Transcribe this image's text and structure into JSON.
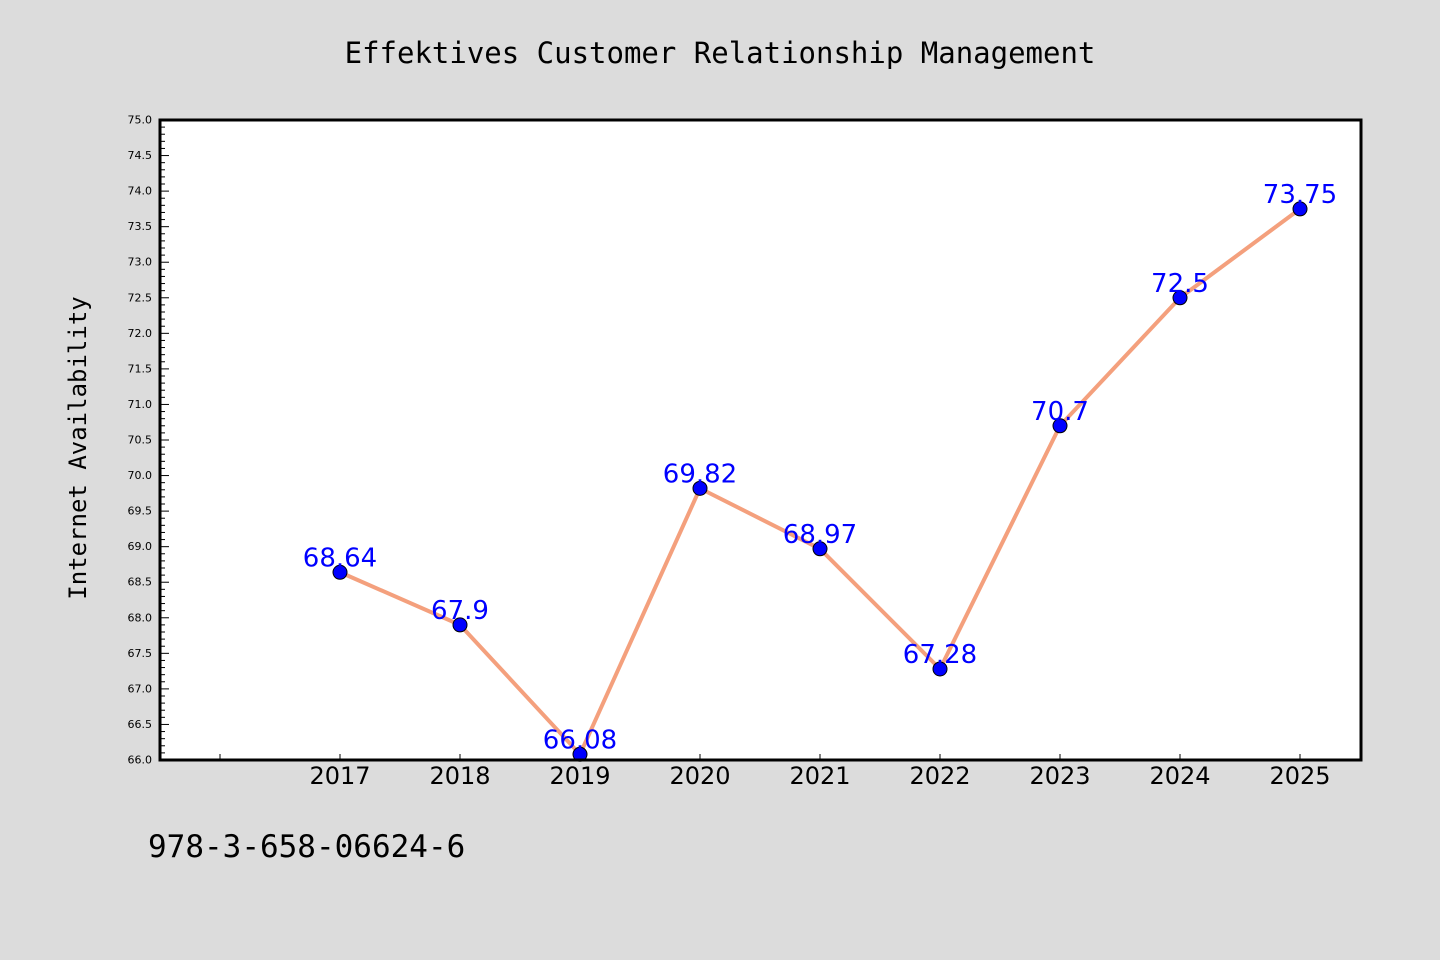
{
  "footer": {
    "code": "978-3-658-06624-6"
  },
  "chart_data": {
    "type": "line",
    "title": "Effektives Customer Relationship Management",
    "xlabel": "",
    "ylabel": "Internet Availability",
    "categories": [
      "2017",
      "2018",
      "2019",
      "2020",
      "2021",
      "2022",
      "2023",
      "2024",
      "2025"
    ],
    "series": [
      {
        "values": [
          68.64,
          67.9,
          66.08,
          69.82,
          68.97,
          67.28,
          70.7,
          72.5,
          73.75
        ],
        "labels": [
          "68.64",
          "67.9",
          "66.08",
          "69.82",
          "68.97",
          "67.28",
          "70.7",
          "72.5",
          "73.75"
        ],
        "line_color": "#f4a07d",
        "marker_color": "#0000ff",
        "label_color": "#0000ff"
      }
    ],
    "ylim": [
      66.0,
      75.0
    ],
    "yticks": [
      "66.0",
      "66.5",
      "67.0",
      "67.5",
      "68.0",
      "68.5",
      "69.0",
      "69.5",
      "70.0",
      "70.5",
      "71.0",
      "71.5",
      "72.0",
      "72.5",
      "73.0",
      "73.5",
      "74.0",
      "74.5",
      "75.0"
    ],
    "grid": false,
    "legend": "none",
    "colors": {
      "background": "#dcdcdc",
      "plot_background": "#ffffff"
    }
  }
}
